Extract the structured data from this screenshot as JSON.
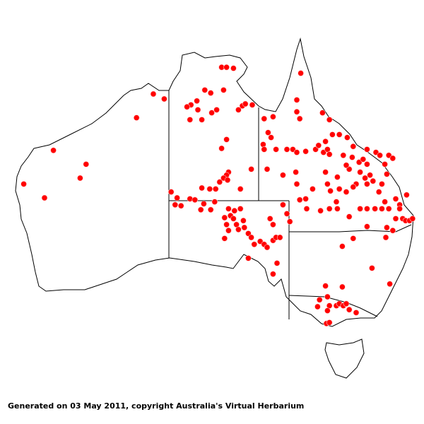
{
  "map": {
    "region": "Australia",
    "marker_color": "#ff0000",
    "marker_icon": "red-dot-icon",
    "occurrences_lonlat": [
      [
        127.0,
        -15.0
      ],
      [
        128.1,
        -15.5
      ],
      [
        125.3,
        -17.4
      ],
      [
        116.9,
        -20.7
      ],
      [
        120.2,
        -22.1
      ],
      [
        119.6,
        -23.5
      ],
      [
        113.9,
        -24.1
      ],
      [
        116.0,
        -25.5
      ],
      [
        133.9,
        -12.3
      ],
      [
        134.4,
        -12.3
      ],
      [
        135.1,
        -12.4
      ],
      [
        132.2,
        -14.6
      ],
      [
        132.8,
        -14.9
      ],
      [
        134.1,
        -14.6
      ],
      [
        131.4,
        -15.7
      ],
      [
        130.8,
        -16.1
      ],
      [
        130.4,
        -16.3
      ],
      [
        131.5,
        -16.6
      ],
      [
        133.4,
        -16.6
      ],
      [
        132.9,
        -16.9
      ],
      [
        131.9,
        -17.6
      ],
      [
        130.7,
        -17.6
      ],
      [
        136.0,
        -16.2
      ],
      [
        136.3,
        -16.0
      ],
      [
        135.6,
        -16.6
      ],
      [
        137.0,
        -16.1
      ],
      [
        134.4,
        -19.6
      ],
      [
        133.9,
        -20.5
      ],
      [
        136.9,
        -22.6
      ],
      [
        134.6,
        -22.9
      ],
      [
        134.4,
        -23.2
      ],
      [
        134.1,
        -23.5
      ],
      [
        133.7,
        -23.9
      ],
      [
        134.5,
        -23.7
      ],
      [
        131.9,
        -24.5
      ],
      [
        132.7,
        -24.6
      ],
      [
        133.3,
        -24.6
      ],
      [
        135.8,
        -24.6
      ],
      [
        128.8,
        -24.9
      ],
      [
        129.4,
        -25.5
      ],
      [
        130.7,
        -25.6
      ],
      [
        131.2,
        -25.7
      ],
      [
        129.2,
        -26.2
      ],
      [
        129.8,
        -26.3
      ],
      [
        132.1,
        -26.1
      ],
      [
        131.8,
        -26.7
      ],
      [
        132.8,
        -26.7
      ],
      [
        134.6,
        -26.6
      ],
      [
        135.2,
        -26.8
      ],
      [
        135.8,
        -26.6
      ],
      [
        134.2,
        -27.5
      ],
      [
        134.8,
        -27.3
      ],
      [
        135.1,
        -27.6
      ],
      [
        136.1,
        -27.8
      ],
      [
        134.4,
        -28.2
      ],
      [
        134.6,
        -28.8
      ],
      [
        135.4,
        -28.2
      ],
      [
        135.6,
        -28.7
      ],
      [
        136.2,
        -28.5
      ],
      [
        136.6,
        -29.1
      ],
      [
        136.9,
        -29.5
      ],
      [
        134.2,
        -29.6
      ],
      [
        137.2,
        -30.2
      ],
      [
        137.8,
        -29.9
      ],
      [
        138.2,
        -30.2
      ],
      [
        138.5,
        -30.5
      ],
      [
        139.1,
        -29.8
      ],
      [
        139.4,
        -29.5
      ],
      [
        139.8,
        -29.5
      ],
      [
        138.8,
        -27.6
      ],
      [
        139.1,
        -28.2
      ],
      [
        140.1,
        -26.2
      ],
      [
        140.5,
        -27.1
      ],
      [
        140.8,
        -27.9
      ],
      [
        136.6,
        -31.6
      ],
      [
        139.1,
        -33.2
      ],
      [
        139.5,
        -32.1
      ],
      [
        133.2,
        -25.9
      ],
      [
        141.9,
        -12.9
      ],
      [
        141.5,
        -15.6
      ],
      [
        141.5,
        -16.8
      ],
      [
        141.8,
        -17.5
      ],
      [
        139.1,
        -17.3
      ],
      [
        138.2,
        -17.5
      ],
      [
        138.6,
        -18.9
      ],
      [
        138.9,
        -19.4
      ],
      [
        138.1,
        -20.1
      ],
      [
        138.2,
        -20.6
      ],
      [
        139.4,
        -20.6
      ],
      [
        140.5,
        -20.6
      ],
      [
        141.1,
        -20.6
      ],
      [
        141.5,
        -20.9
      ],
      [
        142.4,
        -20.8
      ],
      [
        143.4,
        -20.6
      ],
      [
        143.7,
        -20.2
      ],
      [
        144.4,
        -19.8
      ],
      [
        144.2,
        -20.9
      ],
      [
        144.6,
        -20.6
      ],
      [
        144.8,
        -21.1
      ],
      [
        144.1,
        -16.9
      ],
      [
        144.8,
        -17.6
      ],
      [
        145.1,
        -19.1
      ],
      [
        145.8,
        -19.1
      ],
      [
        146.6,
        -19.4
      ],
      [
        147.2,
        -20.3
      ],
      [
        146.2,
        -21.2
      ],
      [
        147.1,
        -21.4
      ],
      [
        147.8,
        -21.9
      ],
      [
        148.2,
        -21.6
      ],
      [
        148.6,
        -20.6
      ],
      [
        149.5,
        -20.9
      ],
      [
        149.9,
        -21.2
      ],
      [
        150.8,
        -21.2
      ],
      [
        151.2,
        -21.5
      ],
      [
        150.4,
        -22.1
      ],
      [
        150.6,
        -23.1
      ],
      [
        148.6,
        -22.1
      ],
      [
        147.9,
        -22.9
      ],
      [
        148.4,
        -23.5
      ],
      [
        148.6,
        -24.1
      ],
      [
        149.2,
        -23.8
      ],
      [
        148.9,
        -23.2
      ],
      [
        147.5,
        -24.1
      ],
      [
        146.8,
        -22.6
      ],
      [
        146.5,
        -22.2
      ],
      [
        145.6,
        -23.4
      ],
      [
        144.4,
        -22.9
      ],
      [
        144.6,
        -24.1
      ],
      [
        144.9,
        -24.8
      ],
      [
        145.8,
        -24.6
      ],
      [
        146.5,
        -24.9
      ],
      [
        147.2,
        -24.4
      ],
      [
        150.1,
        -24.1
      ],
      [
        149.8,
        -24.9
      ],
      [
        150.4,
        -25.9
      ],
      [
        150.8,
        -26.6
      ],
      [
        151.5,
        -25.6
      ],
      [
        151.9,
        -26.2
      ],
      [
        152.6,
        -25.2
      ],
      [
        147.9,
        -26.6
      ],
      [
        148.6,
        -26.6
      ],
      [
        149.4,
        -26.6
      ],
      [
        150.1,
        -26.6
      ],
      [
        151.9,
        -26.6
      ],
      [
        152.2,
        -27.6
      ],
      [
        151.5,
        -27.6
      ],
      [
        152.5,
        -27.8
      ],
      [
        152.9,
        -27.8
      ],
      [
        153.2,
        -27.6
      ],
      [
        150.6,
        -28.5
      ],
      [
        151.2,
        -28.8
      ],
      [
        148.6,
        -28.4
      ],
      [
        146.8,
        -27.4
      ],
      [
        145.6,
        -26.6
      ],
      [
        144.8,
        -26.6
      ],
      [
        145.5,
        -25.9
      ],
      [
        143.9,
        -26.8
      ],
      [
        142.5,
        -26.6
      ],
      [
        141.8,
        -25.7
      ],
      [
        142.4,
        -25.6
      ],
      [
        143.1,
        -24.6
      ],
      [
        140.1,
        -23.2
      ],
      [
        138.5,
        -22.6
      ],
      [
        141.4,
        -22.9
      ],
      [
        141.5,
        -24.1
      ],
      [
        150.5,
        -29.5
      ],
      [
        146.1,
        -30.4
      ],
      [
        147.2,
        -29.6
      ],
      [
        149.1,
        -32.6
      ],
      [
        150.9,
        -34.2
      ],
      [
        144.4,
        -34.4
      ],
      [
        144.6,
        -35.5
      ],
      [
        143.8,
        -35.8
      ],
      [
        144.8,
        -36.4
      ],
      [
        145.5,
        -36.4
      ],
      [
        145.8,
        -36.2
      ],
      [
        146.2,
        -36.4
      ],
      [
        146.1,
        -34.5
      ],
      [
        143.6,
        -36.5
      ],
      [
        144.6,
        -36.9
      ],
      [
        146.8,
        -36.8
      ],
      [
        147.5,
        -37.1
      ],
      [
        146.5,
        -36.2
      ],
      [
        144.5,
        -38.2
      ],
      [
        144.8,
        -38.1
      ]
    ]
  },
  "footer": {
    "caption": "Generated on 03 May 2011, copyright Australia's Virtual Herbarium"
  }
}
